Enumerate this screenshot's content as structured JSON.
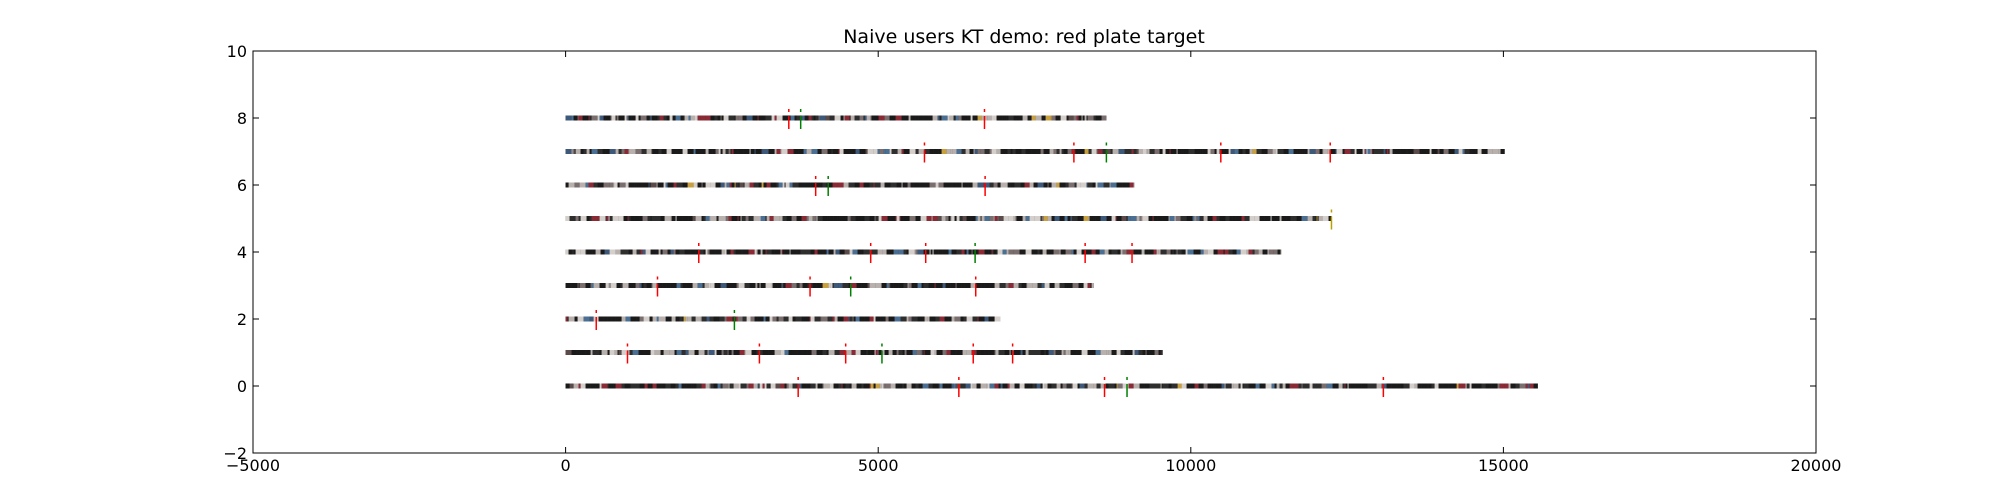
{
  "chart_data": {
    "type": "scatter",
    "title": "Naive users KT demo: red plate target",
    "xlabel": "",
    "ylabel": "",
    "xlim": [
      -5000,
      20000
    ],
    "ylim": [
      -2,
      10
    ],
    "x_ticks": [
      -5000,
      0,
      5000,
      10000,
      15000,
      20000
    ],
    "y_ticks": [
      -2,
      0,
      2,
      4,
      6,
      8,
      10
    ],
    "x_tick_labels": [
      "−5000",
      "0",
      "5000",
      "10000",
      "15000",
      "20000"
    ],
    "y_tick_labels": [
      "−2",
      "0",
      "2",
      "4",
      "6",
      "8",
      "10"
    ],
    "grid": false,
    "legend": "none",
    "colors": {
      "red_marker": "#ff0000",
      "green_marker": "#008000",
      "yellow_marker": "#b8a000",
      "strip_palette": [
        "#1a1a1a",
        "#2e2e2e",
        "#7a6e6e",
        "#b7b0ad",
        "#d5cfcc",
        "#8a2a35",
        "#3d5878",
        "#4a6f92",
        "#c9a040",
        "#5b4a4a"
      ]
    },
    "series": [
      {
        "y": 0,
        "x_start": 0,
        "x_end": 15550,
        "markers": [
          {
            "x": 3720,
            "color": "red"
          },
          {
            "x": 6290,
            "color": "red"
          },
          {
            "x": 8620,
            "color": "red"
          },
          {
            "x": 8980,
            "color": "green"
          },
          {
            "x": 13080,
            "color": "red"
          }
        ]
      },
      {
        "y": 1,
        "x_start": 0,
        "x_end": 9550,
        "markers": [
          {
            "x": 990,
            "color": "red"
          },
          {
            "x": 3100,
            "color": "red"
          },
          {
            "x": 4480,
            "color": "red"
          },
          {
            "x": 5060,
            "color": "green"
          },
          {
            "x": 6520,
            "color": "red"
          },
          {
            "x": 7150,
            "color": "red"
          }
        ]
      },
      {
        "y": 2,
        "x_start": 0,
        "x_end": 6950,
        "markers": [
          {
            "x": 490,
            "color": "red"
          },
          {
            "x": 2700,
            "color": "green"
          }
        ]
      },
      {
        "y": 3,
        "x_start": 0,
        "x_end": 8450,
        "markers": [
          {
            "x": 1470,
            "color": "red"
          },
          {
            "x": 3910,
            "color": "red"
          },
          {
            "x": 4560,
            "color": "green"
          },
          {
            "x": 6560,
            "color": "red"
          }
        ]
      },
      {
        "y": 4,
        "x_start": 0,
        "x_end": 11450,
        "markers": [
          {
            "x": 2130,
            "color": "red"
          },
          {
            "x": 4880,
            "color": "red"
          },
          {
            "x": 5760,
            "color": "red"
          },
          {
            "x": 6550,
            "color": "green"
          },
          {
            "x": 8310,
            "color": "red"
          },
          {
            "x": 9060,
            "color": "red"
          }
        ]
      },
      {
        "y": 5,
        "x_start": 0,
        "x_end": 12250,
        "markers": [
          {
            "x": 12250,
            "color": "yellow"
          }
        ]
      },
      {
        "y": 6,
        "x_start": 0,
        "x_end": 9100,
        "markers": [
          {
            "x": 4000,
            "color": "red"
          },
          {
            "x": 4200,
            "color": "green"
          },
          {
            "x": 6710,
            "color": "red"
          }
        ]
      },
      {
        "y": 7,
        "x_start": 0,
        "x_end": 15020,
        "markers": [
          {
            "x": 5740,
            "color": "red"
          },
          {
            "x": 8130,
            "color": "red"
          },
          {
            "x": 8650,
            "color": "green"
          },
          {
            "x": 10480,
            "color": "red"
          },
          {
            "x": 12230,
            "color": "red"
          }
        ]
      },
      {
        "y": 8,
        "x_start": 0,
        "x_end": 8650,
        "markers": [
          {
            "x": 3570,
            "color": "red"
          },
          {
            "x": 3760,
            "color": "green"
          },
          {
            "x": 6700,
            "color": "red"
          }
        ]
      }
    ]
  }
}
